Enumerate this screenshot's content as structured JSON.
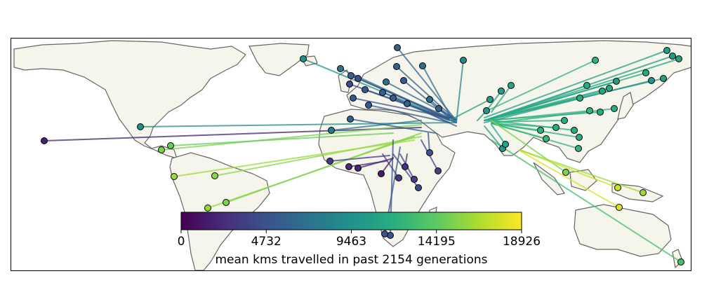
{
  "colorbar": {
    "tick_labels": [
      "0",
      "4732",
      "9463",
      "14195",
      "18926"
    ],
    "label": "mean kms travelled in past 2154 generations",
    "min": 0,
    "max": 18926,
    "colormap": "viridis"
  },
  "colors": {
    "land": "#f5f5ec",
    "coast": "#666666",
    "ocean": "#ffffff",
    "marker_edge": "#000000"
  }
}
